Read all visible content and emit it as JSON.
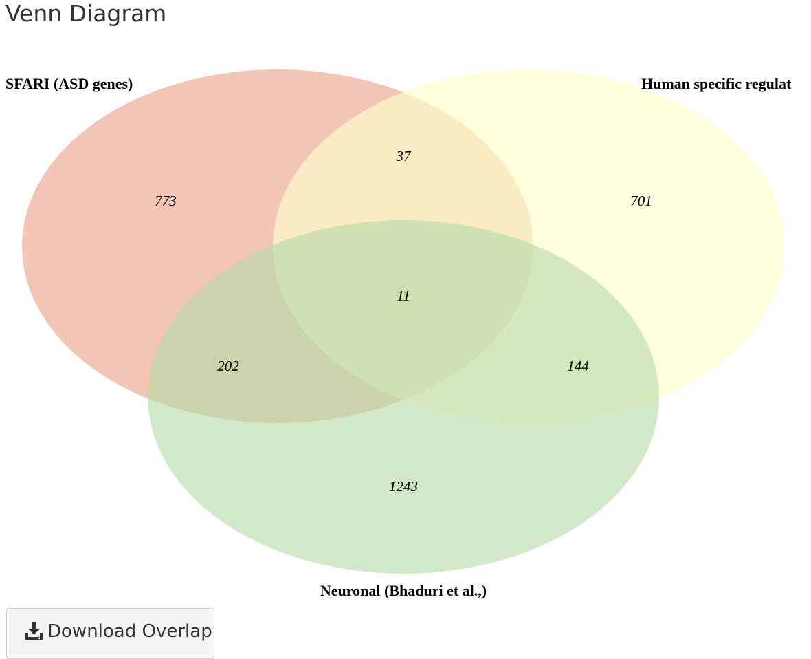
{
  "page": {
    "title": "Venn Diagram"
  },
  "venn": {
    "sets": [
      {
        "name": "SFARI (ASD genes)",
        "color": "#e9967a"
      },
      {
        "name": "Human specific regulat",
        "color": "#ffffcc"
      },
      {
        "name": "Neuronal (Bhaduri et al.,)",
        "color": "#b2dba5"
      }
    ],
    "regions": {
      "sfari_only": "773",
      "sfari_human": "37",
      "human_only": "701",
      "all_three": "11",
      "sfari_neuronal": "202",
      "human_neuronal": "144",
      "neuronal_only": "1243"
    }
  },
  "actions": {
    "download_label": "Download Overlap",
    "download_icon": "download-icon"
  }
}
